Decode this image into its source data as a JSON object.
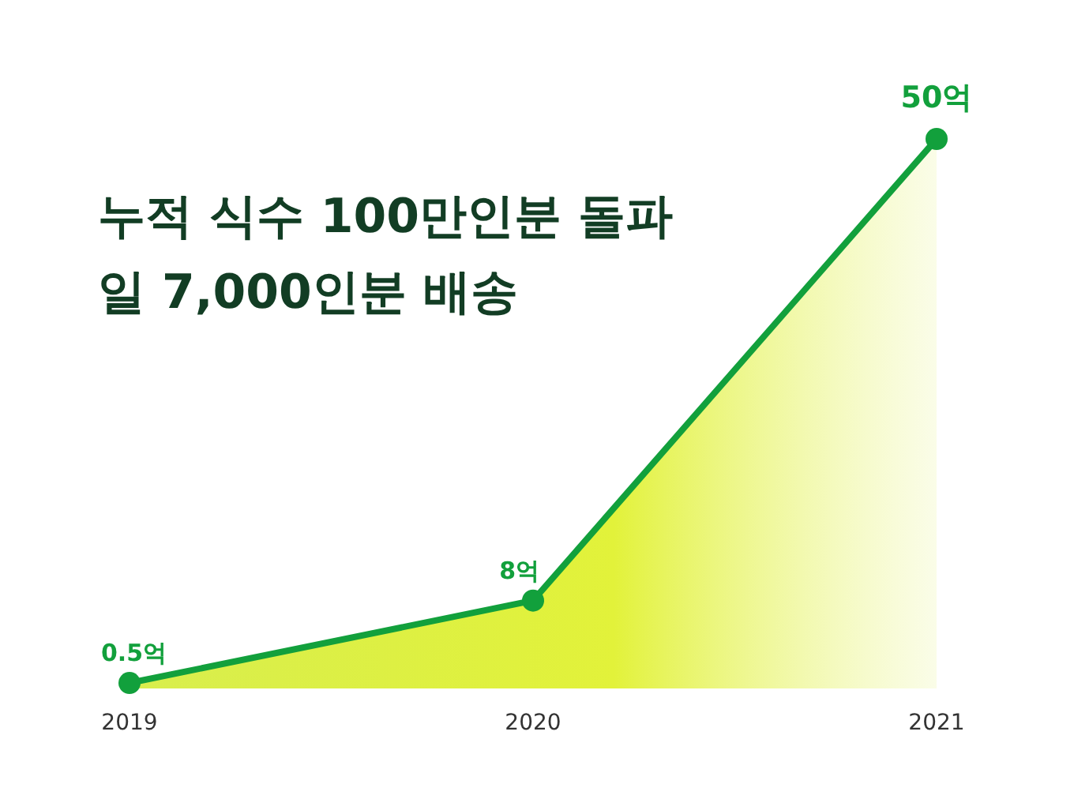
{
  "chart_data": {
    "type": "area",
    "title": "누적 식수 100만인분 돌파",
    "subtitle": "일 7,000인분 배송",
    "categories": [
      "2019",
      "2020",
      "2021"
    ],
    "series": [
      {
        "color": "#12a03c",
        "values": [
          0.5,
          8,
          50
        ],
        "value_labels": [
          "0.5억",
          "8억",
          "50억"
        ]
      }
    ],
    "marker": "circle"
  }
}
